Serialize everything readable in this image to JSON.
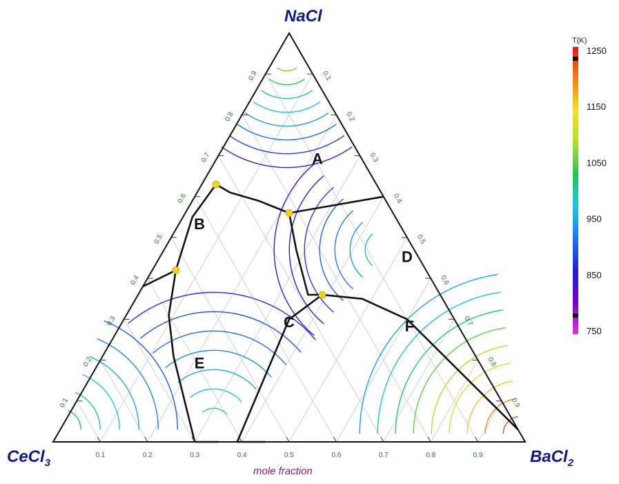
{
  "chart_data": {
    "type": "ternary",
    "components": {
      "top": {
        "base": "NaCl",
        "sub": ""
      },
      "left": {
        "base": "CeCl",
        "sub": "3"
      },
      "right": {
        "base": "BaCl",
        "sub": "2"
      }
    },
    "axis_label": "mole fraction",
    "ticks": [
      "0.1",
      "0.2",
      "0.3",
      "0.4",
      "0.5",
      "0.6",
      "0.7",
      "0.8",
      "0.9"
    ],
    "grid": true,
    "colorbar": {
      "title": "T(K)",
      "range": [
        750,
        1250
      ],
      "ticks": [
        "1250",
        "1150",
        "1050",
        "950",
        "850",
        "750"
      ],
      "placement": "right",
      "stops": [
        "#e830e0",
        "#7a00c8",
        "#2020d8",
        "#1a78f0",
        "#18c8e8",
        "#20c850",
        "#b0e028",
        "#f8e020",
        "#f88010",
        "#e81818"
      ]
    },
    "field_labels": [
      {
        "text": "A",
        "x": {
          "BaCl2": 0.22,
          "CeCl3": 0.1
        }
      },
      {
        "text": "B",
        "x": {
          "BaCl2": 0.05,
          "CeCl3": 0.43
        }
      },
      {
        "text": "C",
        "x": {
          "BaCl2": 0.36,
          "CeCl3": 0.36
        }
      },
      {
        "text": "D",
        "x": {
          "BaCl2": 0.53,
          "CeCl3": 0.03
        }
      },
      {
        "text": "E",
        "x": {
          "BaCl2": 0.22,
          "CeCl3": 0.6
        }
      },
      {
        "text": "F",
        "x": {
          "BaCl2": 0.62,
          "CeCl3": 0.11
        }
      }
    ],
    "boundaries": [
      [
        {
          "BaCl2": 0.03,
          "CeCl3": 0.34
        },
        {
          "BaCl2": 0.07,
          "CeCl3": 0.32
        },
        {
          "BaCl2": 0.14,
          "CeCl3": 0.27
        },
        {
          "BaCl2": 0.22,
          "CeCl3": 0.22
        },
        {
          "BaCl2": 0.4,
          "CeCl3": 0.0
        }
      ],
      [
        {
          "BaCl2": 0.03,
          "CeCl3": 0.34
        },
        {
          "BaCl2": 0.02,
          "CeCl3": 0.43
        },
        {
          "BaCl2": 0.05,
          "CeCl3": 0.53
        }
      ],
      [
        {
          "BaCl2": 0.05,
          "CeCl3": 0.53
        },
        {
          "BaCl2": 0.0,
          "CeCl3": 0.62
        }
      ],
      [
        {
          "BaCl2": 0.05,
          "CeCl3": 0.53
        },
        {
          "BaCl2": 0.09,
          "CeCl3": 0.6
        },
        {
          "BaCl2": 0.15,
          "CeCl3": 0.64
        },
        {
          "BaCl2": 0.3,
          "CeCl3": 0.7
        },
        {
          "BaCl2": 0.35,
          "CeCl3": 0.65
        }
      ],
      [
        {
          "BaCl2": 0.22,
          "CeCl3": 0.22
        },
        {
          "BaCl2": 0.28,
          "CeCl3": 0.25
        },
        {
          "BaCl2": 0.36,
          "CeCl3": 0.28
        },
        {
          "BaCl2": 0.39,
          "CeCl3": 0.25
        }
      ],
      [
        {
          "BaCl2": 0.39,
          "CeCl3": 0.25
        },
        {
          "BaCl2": 0.35,
          "CeCl3": 0.35
        },
        {
          "BaCl2": 0.39,
          "CeCl3": 0.61
        },
        {
          "BaCl2": 0.45,
          "CeCl3": 0.55
        }
      ],
      [
        {
          "BaCl2": 0.39,
          "CeCl3": 0.25
        },
        {
          "BaCl2": 0.48,
          "CeCl3": 0.17
        },
        {
          "BaCl2": 0.6,
          "CeCl3": 0.1
        },
        {
          "BaCl2": 0.97,
          "CeCl3": 0.0
        }
      ]
    ],
    "eutectic_points": [
      {
        "BaCl2": 0.03,
        "CeCl3": 0.34
      },
      {
        "BaCl2": 0.22,
        "CeCl3": 0.22
      },
      {
        "BaCl2": 0.05,
        "CeCl3": 0.53
      },
      {
        "BaCl2": 0.39,
        "CeCl3": 0.25
      }
    ]
  }
}
